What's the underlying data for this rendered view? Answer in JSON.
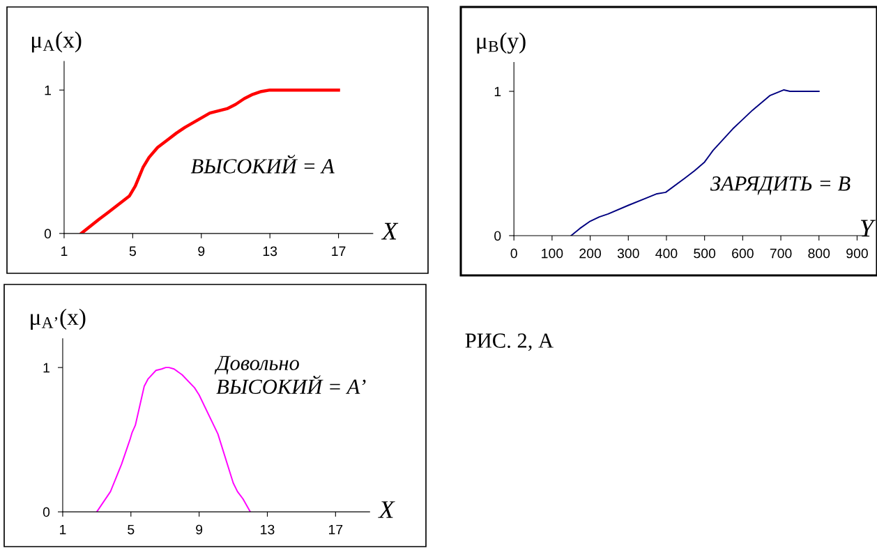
{
  "chart_data": [
    {
      "type": "line",
      "ylabel": "μ$_{A}$(x)",
      "xlabel": "X",
      "annotations": [
        "ВЫСОКИЙ = A"
      ],
      "xlim": [
        1,
        19
      ],
      "xticks": [
        1,
        5,
        9,
        13,
        17
      ],
      "ylim": [
        0,
        1.2
      ],
      "yticks": [
        0,
        1
      ],
      "grid": false,
      "series": [
        {
          "color": "#ff0000",
          "x": [
            2,
            3.05,
            3.5,
            4.8,
            5.15,
            5.6,
            5.95,
            6.45,
            7,
            7.55,
            8.05,
            9.5,
            10.5,
            11,
            11.5,
            12,
            12.5,
            13,
            17
          ],
          "values": [
            0,
            0.1,
            0.14,
            0.26,
            0.33,
            0.46,
            0.53,
            0.6,
            0.65,
            0.7,
            0.74,
            0.84,
            0.87,
            0.9,
            0.94,
            0.97,
            0.99,
            1,
            1
          ]
        }
      ]
    },
    {
      "type": "line",
      "ylabel": "μ$_{B}$(y)",
      "xlabel": "Y",
      "annotations": [
        "ЗАРЯДИТЬ = B"
      ],
      "xlim": [
        0,
        920
      ],
      "xticks": [
        0,
        100,
        200,
        300,
        400,
        500,
        600,
        700,
        800,
        900
      ],
      "ylim": [
        0,
        1.2
      ],
      "yticks": [
        0,
        1
      ],
      "grid": false,
      "series": [
        {
          "color": "#000080",
          "x": [
            150,
            173,
            200,
            224,
            247,
            300,
            347,
            375,
            398,
            449,
            474,
            500,
            522,
            574,
            598,
            626,
            671,
            689,
            708,
            724,
            800
          ],
          "values": [
            0,
            0.05,
            0.1,
            0.13,
            0.15,
            0.21,
            0.26,
            0.29,
            0.3,
            0.4,
            0.45,
            0.51,
            0.59,
            0.74,
            0.8,
            0.87,
            0.97,
            0.99,
            1.01,
            1,
            1
          ]
        }
      ]
    },
    {
      "type": "line",
      "ylabel": "μ$_{A’}$(x)",
      "xlabel": "X",
      "annotations": [
        "Довольно\nВЫСОКИЙ = A’"
      ],
      "xlim": [
        1,
        19
      ],
      "xticks": [
        1,
        5,
        9,
        13,
        17
      ],
      "ylim": [
        0,
        1.2
      ],
      "yticks": [
        0,
        1
      ],
      "grid": false,
      "series": [
        {
          "color": "#ff00ff",
          "x": [
            3,
            3.8,
            4.45,
            4.97,
            5.07,
            5.26,
            5.78,
            6,
            6.47,
            6.8,
            7.04,
            7.23,
            7.53,
            8,
            8.73,
            9,
            10.1,
            11,
            11.25,
            11.57,
            12
          ],
          "values": [
            0,
            0.14,
            0.33,
            0.51,
            0.55,
            0.6,
            0.87,
            0.92,
            0.98,
            0.99,
            1,
            1,
            0.99,
            0.95,
            0.86,
            0.81,
            0.54,
            0.2,
            0.14,
            0.09,
            0
          ]
        }
      ]
    },
    {
      "type": "other",
      "annotations": [
        "РИС. 2, А"
      ]
    }
  ]
}
